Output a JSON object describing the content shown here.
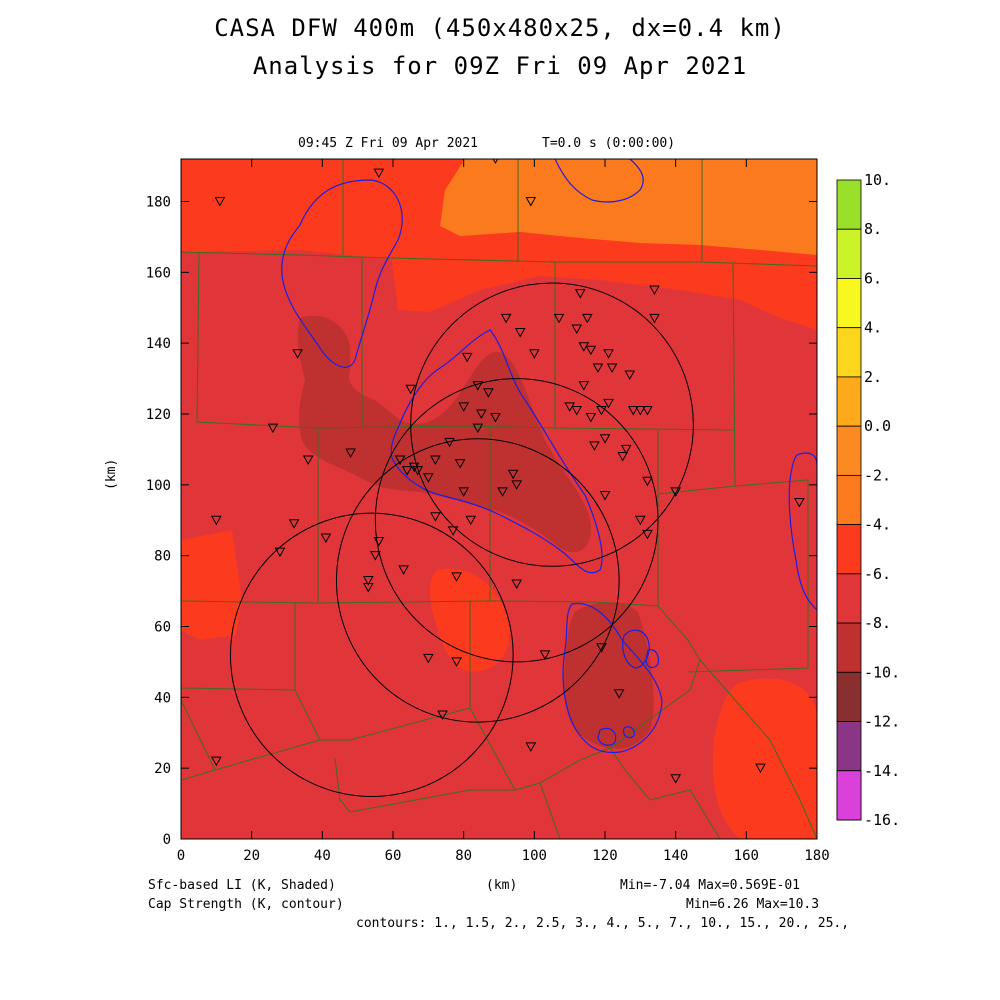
{
  "title": {
    "line1": "CASA DFW 400m (450x480x25, dx=0.4 km)",
    "line2": "Analysis for 09Z Fri 09 Apr 2021"
  },
  "plot": {
    "valid_time": "09:45 Z Fri 09 Apr 2021",
    "model_time": "T=0.0 s (0:00:00)",
    "x_label": "(km)",
    "y_label": "(km)",
    "x_ticks": [
      "0",
      "20",
      "40",
      "60",
      "80",
      "100",
      "120",
      "140",
      "160",
      "180"
    ],
    "y_ticks": [
      "0",
      "20",
      "40",
      "60",
      "80",
      "100",
      "120",
      "140",
      "160",
      "180"
    ],
    "x_range_km": [
      0,
      180
    ],
    "y_range_km": [
      0,
      192
    ]
  },
  "footer": {
    "shaded_label": "Sfc-based LI (K, Shaded)",
    "contour_label": "Cap Strength (K, contour)",
    "axis_units": "(km)",
    "shaded_stats": "Min=-7.04 Max=0.569E-01",
    "contour_stats": "Min=6.26 Max=10.3",
    "contours": "contours: 1., 1.5, 2., 2.5, 3., 4., 5., 7., 10., 15., 20., 25.,"
  },
  "colorbar": {
    "labels": [
      "10.",
      "8.",
      "6.",
      "4.",
      "2.",
      "0.0",
      "-2.",
      "-4.",
      "-6.",
      "-8.",
      "-10.",
      "-12.",
      "-14.",
      "-16."
    ],
    "colors": [
      "#9adf2a",
      "#ccf22a",
      "#f8f820",
      "#fcd61c",
      "#fcaa1c",
      "#fc8a22",
      "#fc7a1e",
      "#fc3a1e",
      "#e0363a",
      "#bf3131",
      "#8a2f2f",
      "#8a3585",
      "#c030b8",
      "#da40da"
    ]
  },
  "map": {
    "radar_circles_km": [
      {
        "center": [
          54,
          52
        ],
        "radius": 40
      },
      {
        "center": [
          84,
          73
        ],
        "radius": 40
      },
      {
        "center": [
          95,
          90
        ],
        "radius": 40
      },
      {
        "center": [
          105,
          117
        ],
        "radius": 40
      }
    ],
    "stations_km": [
      [
        56,
        188
      ],
      [
        89,
        192
      ],
      [
        99,
        180
      ],
      [
        11,
        180
      ],
      [
        33,
        137
      ],
      [
        26,
        116
      ],
      [
        36,
        107
      ],
      [
        48,
        109
      ],
      [
        65,
        127
      ],
      [
        62,
        107
      ],
      [
        64,
        104
      ],
      [
        66,
        105
      ],
      [
        67,
        104
      ],
      [
        70,
        102
      ],
      [
        72,
        107
      ],
      [
        76,
        112
      ],
      [
        79,
        106
      ],
      [
        80,
        122
      ],
      [
        80,
        98
      ],
      [
        81,
        136
      ],
      [
        84,
        128
      ],
      [
        84,
        116
      ],
      [
        85,
        120
      ],
      [
        87,
        126
      ],
      [
        89,
        119
      ],
      [
        91,
        98
      ],
      [
        94,
        103
      ],
      [
        95,
        100
      ],
      [
        92,
        147
      ],
      [
        96,
        143
      ],
      [
        100,
        137
      ],
      [
        107,
        147
      ],
      [
        110,
        122
      ],
      [
        112,
        144
      ],
      [
        112,
        121
      ],
      [
        113,
        154
      ],
      [
        114,
        139
      ],
      [
        114,
        128
      ],
      [
        115,
        147
      ],
      [
        116,
        119
      ],
      [
        116,
        138
      ],
      [
        117,
        111
      ],
      [
        118,
        133
      ],
      [
        119,
        121
      ],
      [
        120,
        113
      ],
      [
        121,
        137
      ],
      [
        121,
        123
      ],
      [
        120,
        97
      ],
      [
        122,
        133
      ],
      [
        125,
        108
      ],
      [
        126,
        110
      ],
      [
        127,
        131
      ],
      [
        128,
        121
      ],
      [
        130,
        121
      ],
      [
        132,
        121
      ],
      [
        132,
        101
      ],
      [
        130,
        90
      ],
      [
        132,
        86
      ],
      [
        134,
        155
      ],
      [
        134,
        147
      ],
      [
        140,
        98
      ],
      [
        10,
        90
      ],
      [
        32,
        89
      ],
      [
        28,
        81
      ],
      [
        41,
        85
      ],
      [
        53,
        73
      ],
      [
        53,
        71
      ],
      [
        55,
        80
      ],
      [
        56,
        84
      ],
      [
        63,
        76
      ],
      [
        78,
        74
      ],
      [
        72,
        91
      ],
      [
        77,
        87
      ],
      [
        82,
        90
      ],
      [
        95,
        72
      ],
      [
        70,
        51
      ],
      [
        78,
        50
      ],
      [
        74,
        35
      ],
      [
        103,
        52
      ],
      [
        119,
        54
      ],
      [
        124,
        41
      ],
      [
        99,
        26
      ],
      [
        10,
        22
      ],
      [
        140,
        17
      ],
      [
        164,
        20
      ],
      [
        175,
        95
      ]
    ]
  }
}
